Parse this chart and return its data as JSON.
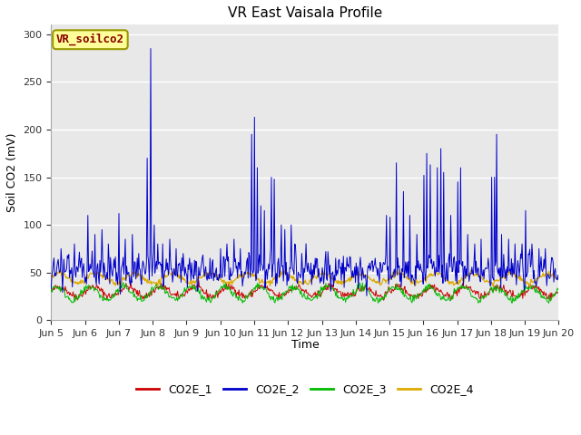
{
  "title": "VR East Vaisala Profile",
  "ylabel": "Soil CO2 (mV)",
  "xlabel": "Time",
  "watermark_text": "VR_soilco2",
  "ylim": [
    0,
    310
  ],
  "yticks": [
    0,
    50,
    100,
    150,
    200,
    250,
    300
  ],
  "xstart_day": 5,
  "xend_day": 20,
  "colors": {
    "CO2E_1": "#cc0000",
    "CO2E_2": "#0000cc",
    "CO2E_3": "#00bb00",
    "CO2E_4": "#ddaa00"
  },
  "fig_bg": "#ffffff",
  "plot_bg": "#e8e8e8",
  "grid_color": "#ffffff",
  "watermark_facecolor": "#ffff99",
  "watermark_edgecolor": "#999900",
  "watermark_textcolor": "#880000",
  "legend_labels": [
    "CO2E_1",
    "CO2E_2",
    "CO2E_3",
    "CO2E_4"
  ],
  "title_fontsize": 11,
  "label_fontsize": 9,
  "tick_fontsize": 8
}
